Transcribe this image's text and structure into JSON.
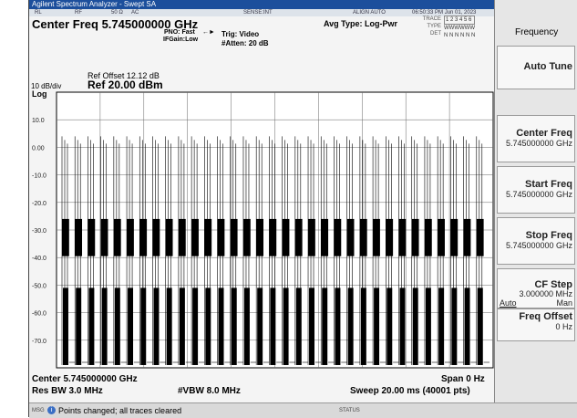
{
  "window": {
    "title": "Agilent Spectrum Analyzer - Swept SA"
  },
  "status_bar": {
    "rl": "RL",
    "rf": "RF",
    "impedance": "50 Ω",
    "coupling": "AC",
    "sense": "SENSE:INT",
    "align": "ALIGN AUTO",
    "datetime": "06:50:33 PM Jun 01, 2023"
  },
  "header": {
    "center_freq": "Center Freq 5.745000000 GHz",
    "pno": "PNO: Fast",
    "ifgain": "IFGain:Low",
    "trig": "Trig: Video",
    "atten": "#Atten: 20 dB",
    "avg_type": "Avg Type: Log-Pwr",
    "trace_label": "TRACE",
    "trace_values": "1 2 3 4 5 6",
    "type_label": "TYPE",
    "type_values": "WWWWWW",
    "det_label": "DET",
    "det_values": "N N N N N N"
  },
  "graph": {
    "ref_offset": "Ref Offset 12.12 dB",
    "scale": "10 dB/div",
    "ref_level": "Ref 20.00 dBm",
    "scale_type": "Log",
    "y_labels": [
      "10.0",
      "0.00",
      "-10.0",
      "-20.0",
      "-30.0",
      "-40.0",
      "-50.0",
      "-60.0",
      "-70.0"
    ]
  },
  "footer": {
    "center": "Center 5.745000000 GHz",
    "span": "Span 0 Hz",
    "res_bw": "Res BW 3.0 MHz",
    "vbw": "#VBW 8.0 MHz",
    "sweep": "Sweep  20.00 ms (40001 pts)"
  },
  "message_bar": {
    "label": "MSG",
    "message": "Points changed; all traces cleared",
    "status": "STATUS"
  },
  "softkeys": {
    "menu_title": "Frequency",
    "keys": [
      {
        "label": "Auto Tune"
      },
      {
        "label": "Center Freq",
        "value": "5.745000000 GHz"
      },
      {
        "label": "Start Freq",
        "value": "5.745000000 GHz"
      },
      {
        "label": "Stop Freq",
        "value": "5.745000000 GHz"
      },
      {
        "label": "CF Step",
        "value": "3.000000 MHz",
        "options": [
          "Auto",
          "Man"
        ]
      },
      {
        "label": "Freq Offset",
        "value": "0 Hz"
      }
    ]
  }
}
